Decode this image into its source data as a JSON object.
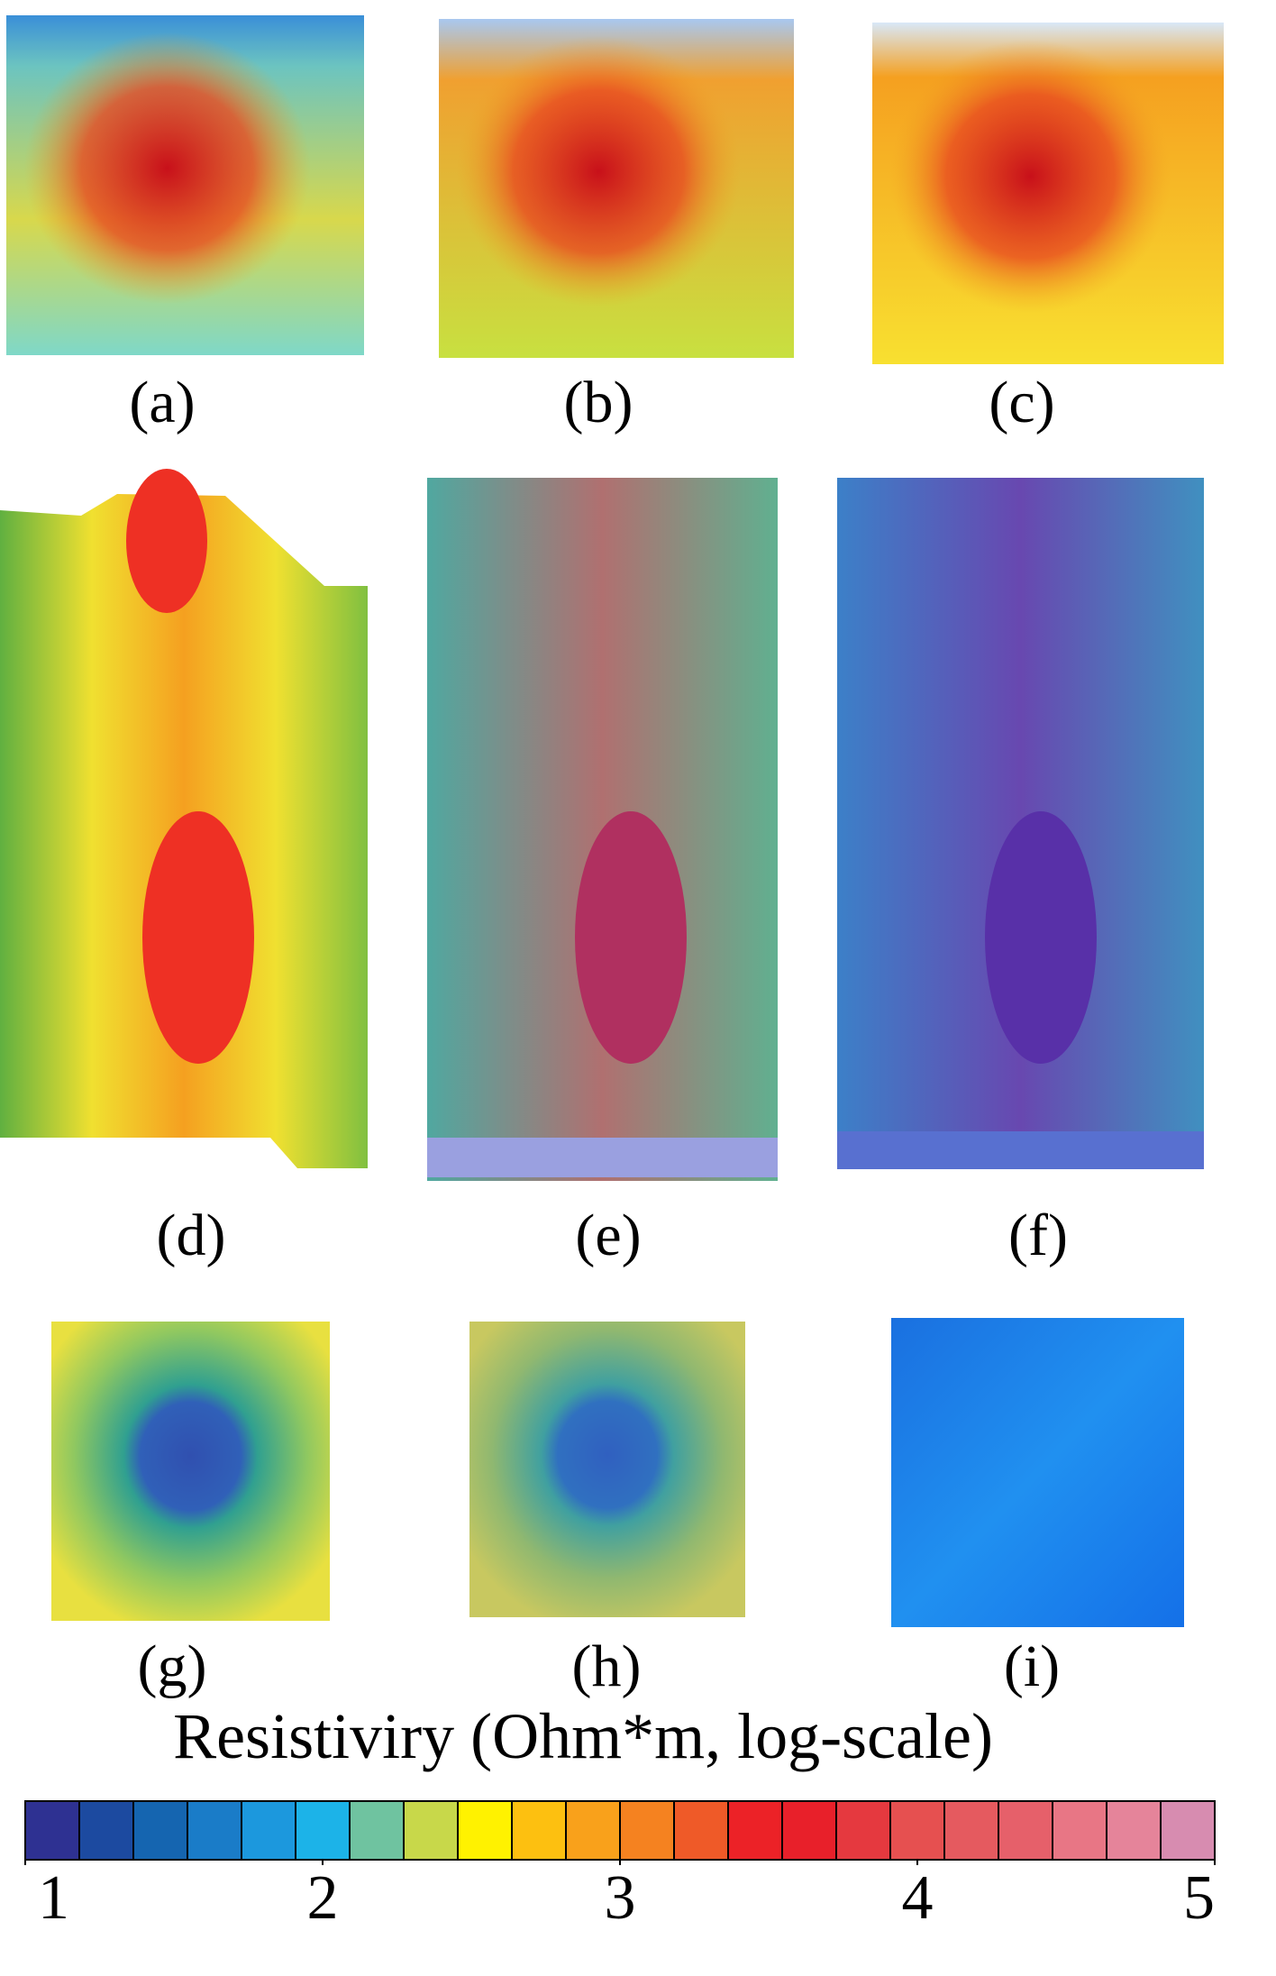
{
  "panels": {
    "labels": [
      "(a)",
      "(b)",
      "(c)",
      "(d)",
      "(e)",
      "(f)",
      "(g)",
      "(h)",
      "(i)"
    ]
  },
  "colorbar": {
    "title": "Resistiviry (Ohm*m, log-scale)",
    "lim": [
      1,
      5
    ],
    "ticks": [
      1,
      2,
      3,
      4,
      5
    ],
    "colors": [
      "#2e3192",
      "#1c4aa0",
      "#1565b0",
      "#1a7cc8",
      "#1c98dd",
      "#1cb3e8",
      "#6fc3a0",
      "#c8d84a",
      "#fff200",
      "#fdc010",
      "#f9a11b",
      "#f58220",
      "#ef5a28",
      "#ec2227",
      "#e8202a",
      "#e5393f",
      "#e65050",
      "#e55a5f",
      "#e6606a",
      "#e87685",
      "#e5849a",
      "#d78cb0"
    ]
  }
}
